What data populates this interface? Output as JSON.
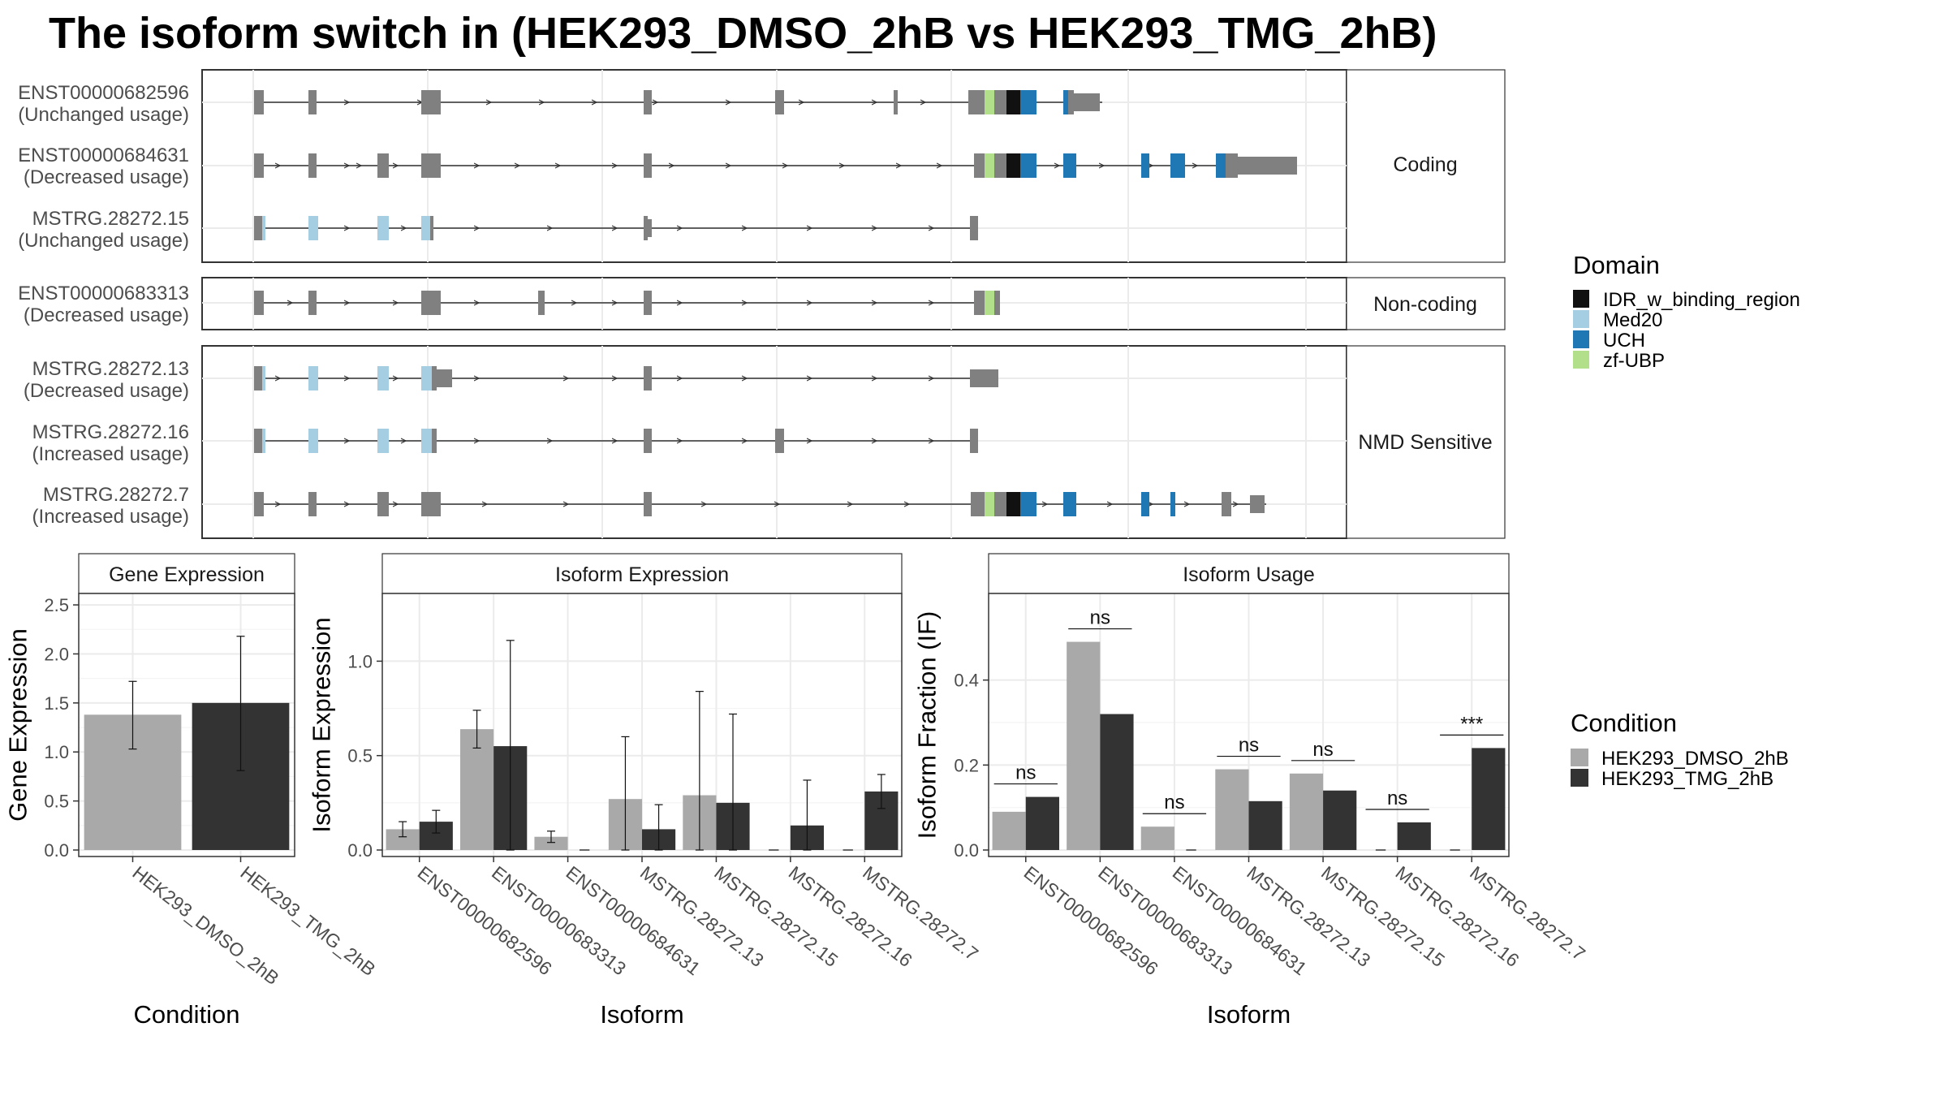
{
  "title": "The isoform switch in  (HEK293_DMSO_2hB vs HEK293_TMG_2hB)",
  "colors": {
    "exon": "#808080",
    "IDR_w_binding_region": "#111111",
    "Med20": "#a6cee3",
    "UCH": "#1f78b4",
    "zf-UBP": "#b2df8a",
    "HEK293_DMSO_2hB": "#a9a9a9",
    "HEK293_TMG_2hB": "#333333"
  },
  "facets": [
    {
      "label": "Coding",
      "transcripts": [
        0,
        1,
        2
      ]
    },
    {
      "label": "Non-coding",
      "transcripts": [
        3
      ]
    },
    {
      "label": "NMD Sensitive",
      "transcripts": [
        4,
        5,
        6
      ]
    }
  ],
  "transcripts": [
    {
      "id": "ENST00000682596",
      "usage": "(Unchanged usage)"
    },
    {
      "id": "ENST00000684631",
      "usage": "(Decreased usage)"
    },
    {
      "id": "MSTRG.28272.15",
      "usage": "(Unchanged usage)"
    },
    {
      "id": "ENST00000683313",
      "usage": "(Decreased usage)"
    },
    {
      "id": "MSTRG.28272.13",
      "usage": "(Decreased usage)"
    },
    {
      "id": "MSTRG.28272.16",
      "usage": "(Increased usage)"
    },
    {
      "id": "MSTRG.28272.7",
      "usage": "(Increased usage)"
    }
  ],
  "domain_legend": {
    "title": "Domain",
    "items": [
      "IDR_w_binding_region",
      "Med20",
      "UCH",
      "zf-UBP"
    ]
  },
  "condition_legend": {
    "title": "Condition",
    "items": [
      "HEK293_DMSO_2hB",
      "HEK293_TMG_2hB"
    ]
  },
  "chart_data": [
    {
      "type": "bar",
      "title": "Gene Expression",
      "xlabel": "Condition",
      "ylabel": "Gene Expression",
      "ylim": [
        0,
        2.6
      ],
      "yticks": [
        "0.0",
        "0.5",
        "1.0",
        "1.5",
        "2.0",
        "2.5"
      ],
      "categories": [
        "HEK293_DMSO_2hB",
        "HEK293_TMG_2hB"
      ],
      "values": [
        1.38,
        1.5
      ],
      "errors": [
        [
          1.03,
          1.72
        ],
        [
          0.81,
          2.18
        ]
      ]
    },
    {
      "type": "bar",
      "title": "Isoform Expression",
      "xlabel": "Isoform",
      "ylabel": "Isoform Expression",
      "ylim": [
        0,
        1.35
      ],
      "yticks": [
        "0.0",
        "0.5",
        "1.0"
      ],
      "categories": [
        "ENST00000682596",
        "ENST00000683313",
        "ENST00000684631",
        "MSTRG.28272.13",
        "MSTRG.28272.15",
        "MSTRG.28272.16",
        "MSTRG.28272.7"
      ],
      "series": [
        {
          "name": "HEK293_DMSO_2hB",
          "values": [
            0.11,
            0.64,
            0.07,
            0.27,
            0.29,
            0.0,
            0.0
          ],
          "errors": [
            [
              0.07,
              0.15
            ],
            [
              0.54,
              0.74
            ],
            [
              0.04,
              0.1
            ],
            [
              0.0,
              0.6
            ],
            [
              0.0,
              0.84
            ],
            [
              0.0,
              0.0
            ],
            [
              0.0,
              0.0
            ]
          ]
        },
        {
          "name": "HEK293_TMG_2hB",
          "values": [
            0.15,
            0.55,
            0.0,
            0.11,
            0.25,
            0.13,
            0.31
          ],
          "errors": [
            [
              0.09,
              0.21
            ],
            [
              0.0,
              1.11
            ],
            [
              0.0,
              0.0
            ],
            [
              0.0,
              0.24
            ],
            [
              0.0,
              0.72
            ],
            [
              0.0,
              0.37
            ],
            [
              0.22,
              0.4
            ]
          ]
        }
      ]
    },
    {
      "type": "bar",
      "title": "Isoform Usage",
      "xlabel": "Isoform",
      "ylabel": "Isoform Fraction (IF)",
      "ylim": [
        0,
        0.6
      ],
      "yticks": [
        "0.0",
        "0.2",
        "0.4"
      ],
      "categories": [
        "ENST00000682596",
        "ENST00000683313",
        "ENST00000684631",
        "MSTRG.28272.13",
        "MSTRG.28272.15",
        "MSTRG.28272.16",
        "MSTRG.28272.7"
      ],
      "series": [
        {
          "name": "HEK293_DMSO_2hB",
          "values": [
            0.09,
            0.49,
            0.055,
            0.19,
            0.18,
            0.0,
            0.0
          ]
        },
        {
          "name": "HEK293_TMG_2hB",
          "values": [
            0.125,
            0.32,
            0.0,
            0.115,
            0.14,
            0.065,
            0.24
          ]
        }
      ],
      "significance": [
        "ns",
        "ns",
        "ns",
        "ns",
        "ns",
        "ns",
        "***"
      ]
    }
  ]
}
